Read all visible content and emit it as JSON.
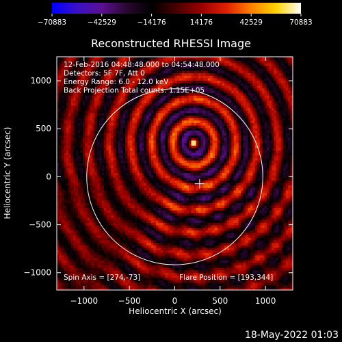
{
  "chart_data": {
    "type": "heatmap",
    "title": "Reconstructed RHESSI Image",
    "xlabel": "Heliocentric X (arcsec)",
    "ylabel": "Heliocentric Y (arcsec)",
    "xlim": [
      -1300,
      1300
    ],
    "ylim": [
      -1180,
      1250
    ],
    "x_ticks": [
      -1000,
      -500,
      0,
      500,
      1000
    ],
    "x_tick_labels": [
      "−1000",
      "−500",
      "0",
      "500",
      "1000"
    ],
    "y_ticks": [
      -1000,
      -500,
      0,
      500,
      1000
    ],
    "y_tick_labels": [
      "−1000",
      "−500",
      "0",
      "500",
      "1000"
    ],
    "colorbar": {
      "min": -70883,
      "max": 70883,
      "tick_values": [
        -70883,
        -42529,
        -14176,
        14176,
        42529,
        70883
      ],
      "tick_labels": [
        "−70883",
        "−42529",
        "−14176",
        "14176",
        "42529",
        "70883"
      ]
    },
    "source": {
      "x": 210,
      "y": 350,
      "peak": 70883
    },
    "solar_limb": {
      "center_x": 0,
      "center_y": 0,
      "radius": 970
    },
    "info_lines": [
      "12-Feb-2016 04:48:48.000 to 04:54:48.000",
      "Detectors: 5F 7F, Att 0",
      "Energy Range: 6.0 - 12.0 keV",
      "Back Projection    Total counts: 1.15E+05"
    ],
    "spin_axis_text": "Spin Axis = [274,-73]",
    "flare_position_text": "Flare Position = [193,344]",
    "spin_axis": {
      "x": 274,
      "y": -73
    },
    "timestamp": "18-May-2022 01:03"
  },
  "colors": {
    "background": "#000000",
    "foreground": "#ffffff",
    "colormap": [
      "#0000ff",
      "#3a10c8",
      "#5a1090",
      "#2a0830",
      "#000000",
      "#4a0000",
      "#9a0000",
      "#e02000",
      "#ff8000",
      "#ffd200",
      "#ffffff"
    ]
  }
}
